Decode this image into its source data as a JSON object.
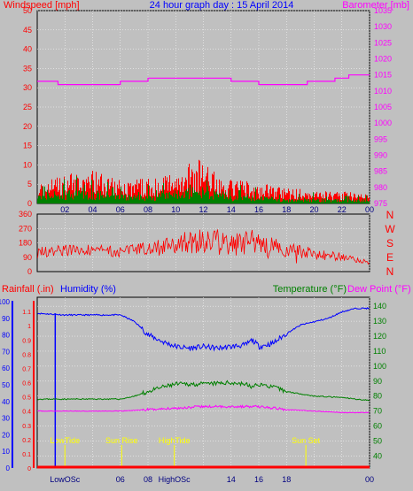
{
  "header": {
    "left_label": "Windspeed [mph]",
    "title": "24 hour graph day : 15 April 2014",
    "right_label": "Barometer [mb]"
  },
  "colors": {
    "plot_bg": "#c0c0c0",
    "grid": "#ffffff",
    "wind_avg": "#008000",
    "wind_gust": "#ff0000",
    "barometer": "#ff00ff",
    "direction": "#ff0000",
    "humidity": "#0000ff",
    "temperature": "#008000",
    "dewpoint": "#ff00ff",
    "rainfall": "#ff0000",
    "annotation": "#ffff00"
  },
  "chart_data": [
    {
      "type": "line",
      "name": "wind-barometer",
      "x_ticks": [
        "02",
        "04",
        "06",
        "08",
        "10",
        "12",
        "14",
        "16",
        "18",
        "20",
        "22",
        "00"
      ],
      "y_left_ticks": [
        "0",
        "5",
        "10",
        "15",
        "20",
        "25",
        "30",
        "35",
        "40",
        "45",
        "50"
      ],
      "y_left_range": [
        0,
        50
      ],
      "y_right_ticks": [
        "975",
        "980",
        "985",
        "990",
        "995",
        "1000",
        "1005",
        "1010",
        "1015",
        "1020",
        "1025",
        "1030",
        "1035"
      ],
      "y_right_range": [
        975,
        1035
      ],
      "grid": true,
      "barometer": {
        "x": [
          0,
          1.5,
          6,
          8,
          14,
          16,
          19.5,
          21.5,
          22.5,
          24
        ],
        "y": [
          1013,
          1012,
          1013,
          1014,
          1013,
          1012,
          1013,
          1014,
          1015,
          1015
        ]
      },
      "wind_envelope": {
        "x": [
          0,
          2,
          4,
          6,
          8,
          10,
          12,
          13,
          14,
          16,
          18,
          20,
          22,
          24
        ],
        "avg": [
          2,
          3,
          3,
          2,
          2,
          3,
          4,
          3,
          2,
          2,
          1,
          1,
          1,
          1
        ],
        "gust": [
          5,
          7,
          8,
          6,
          6,
          8,
          11,
          7,
          6,
          5,
          4,
          3,
          3,
          2
        ]
      }
    },
    {
      "type": "line",
      "name": "wind-direction",
      "y_left_ticks": [
        "360",
        "270",
        "180",
        "90",
        "0"
      ],
      "y_left_range": [
        0,
        360
      ],
      "y_right_ticks": [
        "N",
        "W",
        "S",
        "E",
        "N"
      ],
      "x": [
        0,
        2,
        4,
        6,
        8,
        10,
        12,
        14,
        16,
        18,
        20,
        22,
        23,
        24
      ],
      "y": [
        120,
        130,
        140,
        120,
        150,
        170,
        190,
        180,
        170,
        140,
        110,
        90,
        70,
        60
      ],
      "spread": [
        35,
        35,
        35,
        35,
        40,
        60,
        80,
        80,
        70,
        50,
        35,
        25,
        20,
        15
      ]
    },
    {
      "type": "line",
      "name": "climate",
      "left_label_1": "Rainfall (.in)",
      "left_label_2": "Humidity (%)",
      "right_label_1": "Temperature (°F)",
      "right_label_2": "Dew Point (°F)",
      "humidity_ticks": [
        "0",
        "10",
        "20",
        "30",
        "40",
        "50",
        "60",
        "70",
        "80",
        "90",
        "100"
      ],
      "rain_ticks": [
        "0",
        "0.1",
        "0.2",
        "0.3",
        "0.4",
        "0.5",
        "0.6",
        "0.7",
        "0.8",
        "0.9",
        "1",
        "1.1"
      ],
      "temp_ticks": [
        "40",
        "50",
        "60",
        "70",
        "80",
        "90",
        "100",
        "110",
        "120",
        "130",
        "140"
      ],
      "temp_range": [
        32,
        146
      ],
      "x_ticks": [
        "LowOSc",
        "06",
        "08",
        "HighOSc",
        "14",
        "16",
        "18",
        "00"
      ],
      "humidity": {
        "x": [
          0,
          2,
          4,
          6,
          7,
          8,
          9,
          10,
          11,
          12,
          13,
          14,
          15,
          15.5,
          16,
          17,
          18,
          19,
          20,
          21,
          22,
          23,
          24
        ],
        "y": [
          93,
          92,
          92,
          92,
          88,
          80,
          76,
          73,
          72,
          73,
          72,
          73,
          74,
          77,
          73,
          75,
          81,
          86,
          88,
          90,
          94,
          96,
          96
        ]
      },
      "temperature": {
        "x": [
          0,
          4,
          6,
          7,
          8,
          9,
          10,
          12,
          14,
          15,
          15.5,
          16,
          17,
          18,
          20,
          22,
          24
        ],
        "y": [
          78,
          78,
          78,
          80,
          83,
          86,
          88,
          88,
          89,
          88,
          86,
          88,
          86,
          83,
          80,
          79,
          77
        ]
      },
      "dewpoint": {
        "x": [
          0,
          4,
          6,
          8,
          10,
          12,
          14,
          16,
          18,
          20,
          22,
          24
        ],
        "y": [
          70,
          70,
          70,
          71,
          72,
          73,
          73,
          73,
          71,
          70,
          69,
          69
        ]
      },
      "rainfall": {
        "x": [
          0,
          24
        ],
        "y": [
          0,
          0
        ]
      },
      "annotations": [
        {
          "label": "LowTide",
          "x": 2.0
        },
        {
          "label": "Sun Rise",
          "x": 6.1
        },
        {
          "label": "HighTide",
          "x": 9.9
        },
        {
          "label": "Sun Set",
          "x": 19.4
        }
      ],
      "humidity_marker_x": 1.3
    }
  ]
}
